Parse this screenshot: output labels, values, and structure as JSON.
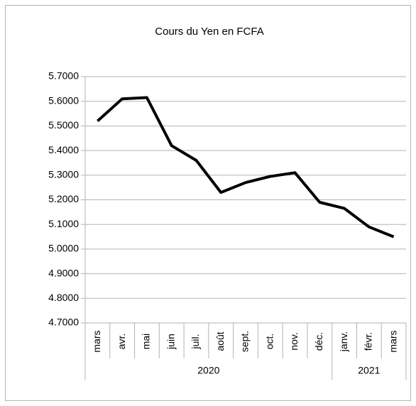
{
  "chart_data": {
    "type": "line",
    "title": "Cours du Yen en FCFA",
    "category_groups": [
      {
        "label": "2020",
        "categories": [
          "mars",
          "avr.",
          "mai",
          "juin",
          "juil.",
          "août",
          "sept.",
          "oct.",
          "nov.",
          "déc."
        ]
      },
      {
        "label": "2021",
        "categories": [
          "janv.",
          "févr.",
          "mars"
        ]
      }
    ],
    "values": [
      5.52,
      5.61,
      5.615,
      5.42,
      5.36,
      5.23,
      5.27,
      5.295,
      5.31,
      5.19,
      5.165,
      5.09,
      5.05
    ],
    "color": "#000000",
    "ylim": [
      4.7,
      5.7
    ],
    "yticks": [
      {
        "value": 4.7,
        "label": "4.7000"
      },
      {
        "value": 4.8,
        "label": "4.8000"
      },
      {
        "value": 4.9,
        "label": "4.9000"
      },
      {
        "value": 5.0,
        "label": "5.0000"
      },
      {
        "value": 5.1,
        "label": "5.1000"
      },
      {
        "value": 5.2,
        "label": "5.2000"
      },
      {
        "value": 5.3,
        "label": "5.3000"
      },
      {
        "value": 5.4,
        "label": "5.4000"
      },
      {
        "value": 5.5,
        "label": "5.5000"
      },
      {
        "value": 5.6,
        "label": "5.6000"
      },
      {
        "value": 5.7,
        "label": "5.7000"
      }
    ],
    "grid": true
  }
}
